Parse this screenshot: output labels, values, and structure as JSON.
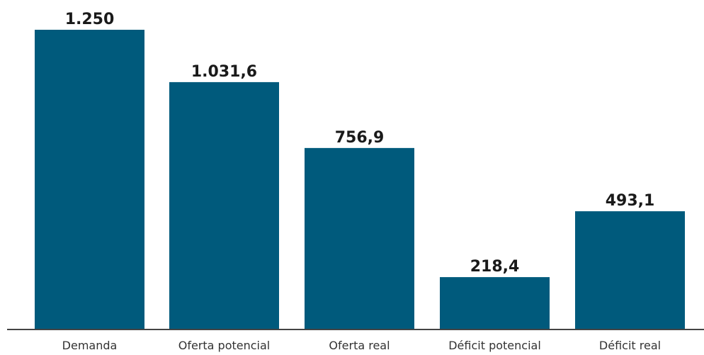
{
  "chart_data": {
    "type": "bar",
    "categories": [
      "Demanda",
      "Oferta potencial",
      "Oferta real",
      "Déficit potencial",
      "Déficit real"
    ],
    "values": [
      1250,
      1031.6,
      756.9,
      218.4,
      493.1
    ],
    "value_labels": [
      "1.250",
      "1.031,6",
      "756,9",
      "218,4",
      "493,1"
    ],
    "title": "",
    "xlabel": "",
    "ylabel": "",
    "ylim": [
      0,
      1250
    ],
    "grid": false,
    "bar_color": "#005a7c"
  }
}
